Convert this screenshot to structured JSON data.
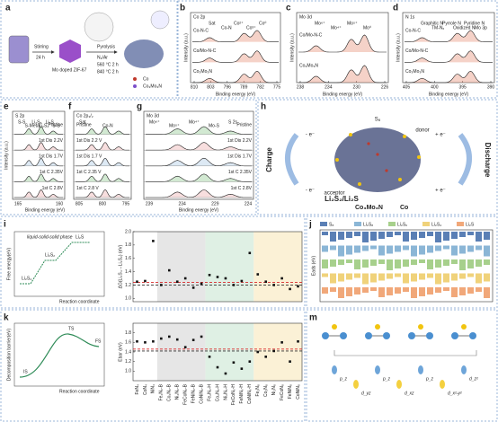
{
  "panels": {
    "a": {
      "label": "a",
      "texts": [
        "Stirring",
        "24 h",
        "Mo doped ZIF-67",
        "Pyrolysis",
        "N₂/Ar",
        "560 °C 2 h",
        "840 °C 2 h",
        "Co",
        "Co₃Mo₃N"
      ]
    },
    "b": {
      "label": "b",
      "title": "Co 2p",
      "xlabel": "Binding energy (eV)",
      "ylabel": "Intensity (a.u.)",
      "samples": [
        "Co-N-C",
        "Co/Mo-N-C",
        "Co₃Mo₃N"
      ],
      "xticks": [
        "810",
        "803",
        "796",
        "789",
        "782",
        "775"
      ],
      "peaks": [
        "Sat",
        "Co-N",
        "Co²⁺",
        "Co³⁺",
        "Co⁰"
      ]
    },
    "c": {
      "label": "c",
      "title": "Mo 3d",
      "xlabel": "Binding energy (eV)",
      "ylabel": "Intensity (a.u.)",
      "samples": [
        "Co/Mo-N-C",
        "Co₃Mo₃N"
      ],
      "xticks": [
        "238",
        "234",
        "230",
        "226"
      ],
      "peaks": [
        "Mo⁶⁺",
        "Mo⁴⁺",
        "Mo⁵⁺",
        "Mo⁰"
      ]
    },
    "d": {
      "label": "d",
      "title": "N 1s",
      "xlabel": "Binding energy (eV)",
      "ylabel": "Intensity (a.u.)",
      "samples": [
        "Co-N-C",
        "Co/Mo-N-C",
        "Co₃Mo₃N"
      ],
      "xticks": [
        "405",
        "400",
        "395",
        "390"
      ],
      "peaks": [
        "Graphitic N",
        "TM-Nₓ",
        "Pyrrole N",
        "Oxidized N",
        "Pyridine N",
        "Mo 3p"
      ]
    },
    "e": {
      "label": "e",
      "title": "S 2p",
      "xlabel": "Binding energy (eV)",
      "ylabel": "Intensity (a.u.)",
      "states": [
        "Pristine",
        "1st Dis 2.2V",
        "1st Dis 1.7V",
        "1st C 2.35V",
        "1st C 2.8V"
      ],
      "species": [
        "S-S",
        "S-Metal",
        "Li₂S₆",
        "Li₂S₄",
        "Li₂S",
        "S-S"
      ],
      "xticks": [
        "165",
        "160"
      ]
    },
    "f": {
      "label": "f",
      "title": "Co 2p₃/₂",
      "states": [
        "Pristine",
        "1st Dis 2.2 V",
        "1st Dis 1.7 V",
        "1st C 2.35 V",
        "1st C 2.8 V"
      ],
      "peaks": [
        "Sat",
        "Co-N"
      ],
      "xticks": [
        "805",
        "800",
        "795"
      ]
    },
    "g": {
      "label": "g",
      "title": "Mo 3d",
      "states": [
        "Pristine",
        "1st Dis 2.2V",
        "1st Dis 1.7V",
        "1st C 2.35V",
        "1st C 2.8V"
      ],
      "peaks": [
        "Mo⁶⁺",
        "Mo⁵⁺",
        "Mo⁴⁺",
        "Mo-S",
        "S 2s"
      ],
      "xticks": [
        "239",
        "234",
        "229",
        "224"
      ],
      "xlabel": "Binding energy (eV)"
    },
    "h": {
      "label": "h",
      "texts": [
        "Charge",
        "Discharge",
        "S₈",
        "donor",
        "acceptor",
        "Li₂S₂/Li₂S",
        "- e⁻",
        "+ e⁻",
        "- e⁻",
        "+ e⁻"
      ],
      "legend": [
        "Co₃Mo₃N",
        "Co"
      ]
    },
    "i": {
      "label": "i",
      "inset": [
        "liquid-solid-solid phase",
        "Li₂S₄",
        "Li₂S₂",
        "Li₂S",
        "Free energy(eV)",
        "Reaction coordinate"
      ],
      "chart": {
        "type": "scatter",
        "ylabel": "ΔG(Li₂S₄→Li₂S₂) (eV)",
        "values": [
          1.25,
          1.26,
          1.86,
          1.2,
          1.42,
          1.25,
          1.3,
          1.16,
          1.22,
          1.35,
          1.32,
          1.3,
          1.2,
          1.26,
          1.68,
          1.36,
          1.25,
          1.2,
          1.3,
          1.14,
          1.18
        ],
        "ylim": [
          0.95,
          2.0
        ],
        "yticks": [
          {
            "value": 1.0,
            "label": "1.0"
          },
          {
            "value": 1.2,
            "label": "1.2"
          },
          {
            "value": 1.4,
            "label": "1.4"
          },
          {
            "value": 1.6,
            "label": "1.6"
          },
          {
            "value": 1.8,
            "label": "1.8"
          },
          {
            "value": 2.0,
            "label": "2.0"
          }
        ],
        "ref_lines": [
          {
            "value": 1.24,
            "color": "#d62728"
          },
          {
            "value": 1.2,
            "color": "#333333"
          }
        ]
      }
    },
    "k": {
      "label": "k",
      "inset": [
        "Decomposition barrier(eV)",
        "Reaction coordinate",
        "IS",
        "TS",
        "FS"
      ],
      "chart": {
        "type": "scatter",
        "ylabel": "Ebar (eV)",
        "categories": [
          "FeN₄",
          "CoN₄",
          "NiN₄",
          "Fe₂N₆-B",
          "Co₂N₆-B",
          "Ni₂N₆-B",
          "FeCoN₆-B",
          "FeNiN₆-B",
          "CoNiN₆-B",
          "Fe₂N₆-H",
          "Co₂N₆-H",
          "Ni₂N₆-H",
          "FeCoN₆-H",
          "FeNiN₆-H",
          "CoNiN₆-H",
          "Fe₂N₈",
          "Co₂N₈",
          "Ni₂N₈",
          "FeCoN₈",
          "FeNiN₈",
          "CoNiN₈"
        ],
        "values": [
          1.62,
          1.6,
          1.62,
          1.68,
          1.72,
          1.66,
          1.5,
          1.65,
          1.72,
          1.3,
          1.08,
          0.95,
          1.18,
          1.05,
          1.2,
          1.4,
          1.3,
          1.42,
          1.6,
          1.2,
          1.62
        ],
        "ylim": [
          0.8,
          2.0
        ],
        "yticks": [
          {
            "value": 1.0,
            "label": "1.0"
          },
          {
            "value": 1.2,
            "label": "1.2"
          },
          {
            "value": 1.4,
            "label": "1.4"
          },
          {
            "value": 1.6,
            "label": "1.6"
          },
          {
            "value": 1.8,
            "label": "1.8"
          }
        ],
        "ref_lines": [
          {
            "value": 1.46,
            "color": "#d62728"
          },
          {
            "value": 1.42,
            "color": "#333333"
          }
        ]
      }
    },
    "j": {
      "label": "j",
      "ylabel": "Eads (eV)",
      "legend": [
        {
          "name": "S₈",
          "color": "#5a7fb5"
        },
        {
          "name": "Li₂S₈",
          "color": "#8bb6d6"
        },
        {
          "name": "Li₂S₆",
          "color": "#a7d08c"
        },
        {
          "name": "Li₂S₄",
          "color": "#f0d27a"
        },
        {
          "name": "Li₂S",
          "color": "#f1a87a"
        }
      ]
    },
    "m": {
      "label": "m",
      "orbitals": [
        "p_z",
        "d_yz",
        "p_z",
        "d_xz",
        "p_z",
        "d_x²-y²",
        "d_z²"
      ]
    }
  }
}
